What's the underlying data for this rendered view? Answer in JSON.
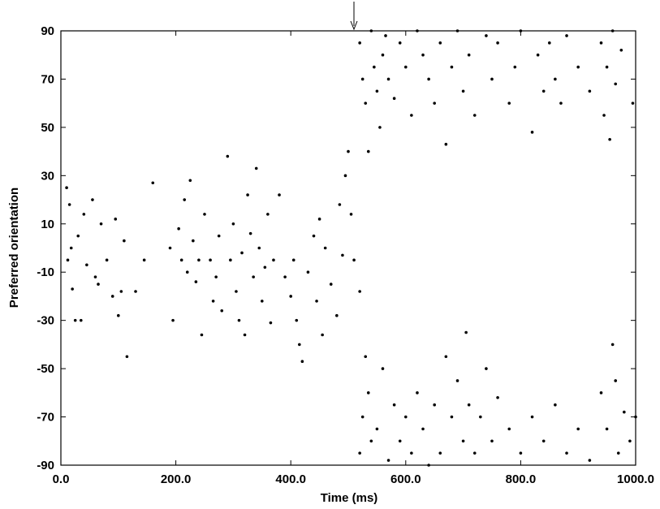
{
  "chart_data": {
    "type": "scatter",
    "x_label": "Time (ms)",
    "y_label": "Preferred orientation",
    "xlim": [
      0,
      1000
    ],
    "ylim": [
      -90,
      90
    ],
    "xticks": [
      {
        "value": 0,
        "label": "0.0"
      },
      {
        "value": 200,
        "label": "200.0"
      },
      {
        "value": 400,
        "label": "400.0"
      },
      {
        "value": 600,
        "label": "600.0"
      },
      {
        "value": 800,
        "label": "800.0"
      },
      {
        "value": 1000,
        "label": "1000.0"
      }
    ],
    "yticks": [
      -90,
      -70,
      -50,
      -30,
      -10,
      10,
      30,
      50,
      70,
      90
    ],
    "color": "#000000",
    "x": [
      10,
      15,
      12,
      20,
      25,
      18,
      30,
      35,
      40,
      45,
      55,
      60,
      65,
      70,
      80,
      90,
      95,
      100,
      105,
      110,
      115,
      130,
      145,
      160,
      190,
      195,
      205,
      210,
      215,
      220,
      225,
      230,
      235,
      240,
      245,
      250,
      260,
      265,
      270,
      275,
      280,
      290,
      295,
      300,
      305,
      310,
      315,
      320,
      325,
      330,
      335,
      340,
      345,
      350,
      355,
      360,
      365,
      370,
      380,
      390,
      400,
      405,
      410,
      415,
      420,
      430,
      440,
      445,
      450,
      455,
      460,
      470,
      480,
      485,
      490,
      495,
      500,
      505,
      510,
      520,
      520,
      525,
      530,
      535,
      540,
      545,
      550,
      555,
      560,
      565,
      570,
      580,
      590,
      600,
      610,
      620,
      630,
      640,
      650,
      660,
      670,
      680,
      690,
      700,
      710,
      720,
      740,
      750,
      760,
      780,
      790,
      800,
      820,
      830,
      840,
      850,
      860,
      870,
      880,
      900,
      920,
      940,
      945,
      950,
      955,
      960,
      965,
      975,
      995,
      520,
      525,
      530,
      535,
      540,
      550,
      560,
      570,
      580,
      590,
      600,
      610,
      620,
      630,
      640,
      650,
      660,
      670,
      680,
      690,
      700,
      705,
      710,
      720,
      730,
      740,
      750,
      760,
      780,
      800,
      820,
      840,
      860,
      880,
      900,
      920,
      940,
      950,
      960,
      965,
      970,
      980,
      990,
      1000
    ],
    "y": [
      25,
      18,
      -5,
      -17,
      -30,
      0,
      5,
      -30,
      14,
      -7,
      20,
      -12,
      -15,
      10,
      -5,
      -20,
      12,
      -28,
      -18,
      3,
      -45,
      -18,
      -5,
      27,
      0,
      -30,
      8,
      -5,
      20,
      -10,
      28,
      3,
      -14,
      -5,
      -36,
      14,
      -5,
      -22,
      -12,
      5,
      -26,
      38,
      -5,
      10,
      -18,
      -30,
      -2,
      -36,
      22,
      6,
      -12,
      33,
      0,
      -22,
      -8,
      14,
      -31,
      -5,
      22,
      -12,
      -20,
      -5,
      -30,
      -40,
      -47,
      -10,
      5,
      -22,
      12,
      -36,
      0,
      -15,
      -28,
      18,
      -3,
      30,
      40,
      14,
      -5,
      -18,
      85,
      70,
      60,
      40,
      90,
      75,
      65,
      50,
      80,
      88,
      70,
      62,
      85,
      75,
      55,
      90,
      80,
      70,
      60,
      85,
      43,
      75,
      90,
      65,
      80,
      55,
      88,
      70,
      85,
      60,
      75,
      90,
      48,
      80,
      65,
      85,
      70,
      60,
      88,
      75,
      65,
      85,
      55,
      75,
      45,
      90,
      68,
      82,
      60,
      -85,
      -70,
      -45,
      -60,
      -80,
      -75,
      -50,
      -88,
      -65,
      -80,
      -70,
      -85,
      -60,
      -75,
      -90,
      -65,
      -85,
      -45,
      -70,
      -55,
      -80,
      -35,
      -65,
      -85,
      -70,
      -50,
      -80,
      -62,
      -75,
      -85,
      -70,
      -80,
      -65,
      -85,
      -75,
      -88,
      -60,
      -75,
      -40,
      -55,
      -85,
      -68,
      -80,
      -70
    ]
  }
}
